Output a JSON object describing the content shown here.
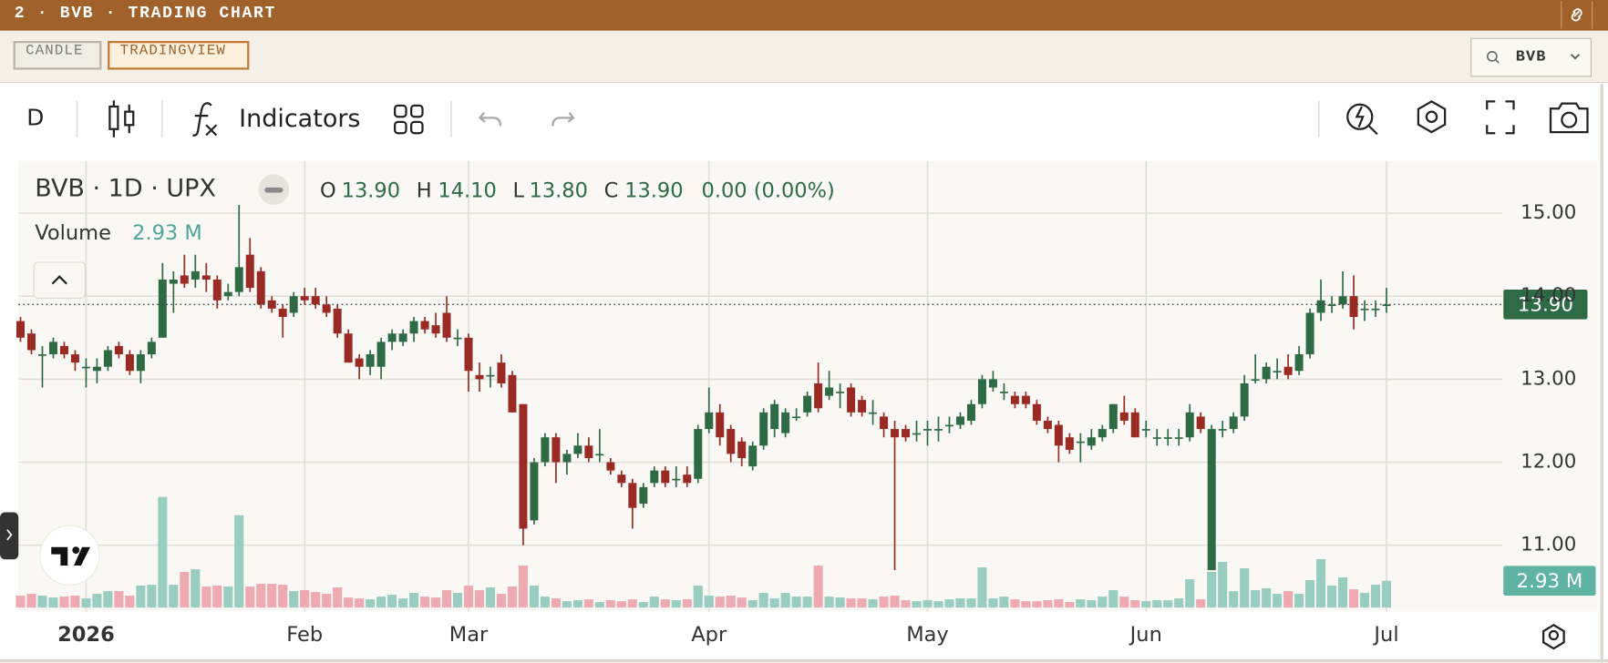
{
  "app": {
    "header": "2 · BVB · TRADING CHART",
    "tabs": [
      "CANDLE",
      "TRADINGVIEW"
    ],
    "search": "BVB",
    "toolbar": {
      "interval": "D",
      "indicators": "Indicators"
    }
  },
  "chart_data": {
    "type": "candlestick",
    "title": "BVB · 1D · UPX",
    "legend": {
      "open_key": "O",
      "open": "13.90",
      "high_key": "H",
      "high": "14.10",
      "low_key": "L",
      "low": "13.80",
      "close_key": "C",
      "close": "13.90",
      "change": "0.00 (0.00%)",
      "volume_key": "Volume"
    },
    "categories": [
      null,
      null,
      null,
      null,
      null,
      null,
      "2026",
      null,
      null,
      null,
      null,
      null,
      null,
      null,
      null,
      null,
      null,
      null,
      null,
      null,
      null,
      null,
      null,
      null,
      null,
      null,
      "Feb",
      null,
      null,
      null,
      null,
      null,
      null,
      null,
      null,
      null,
      null,
      null,
      null,
      null,
      null,
      "Mar",
      null,
      null,
      null,
      null,
      null,
      null,
      null,
      null,
      null,
      null,
      null,
      null,
      null,
      null,
      null,
      null,
      null,
      null,
      null,
      null,
      null,
      "Apr",
      null,
      null,
      null,
      null,
      null,
      null,
      null,
      null,
      null,
      null,
      null,
      null,
      null,
      null,
      null,
      null,
      null,
      null,
      null,
      "May",
      null,
      null,
      null,
      null,
      null,
      null,
      null,
      null,
      null,
      null,
      null,
      null,
      null,
      null,
      null,
      null,
      null,
      null,
      null,
      "Jun",
      null,
      null,
      null,
      null,
      null,
      null,
      null,
      null,
      null,
      null,
      null,
      null,
      null,
      null,
      null,
      null,
      null,
      null,
      null,
      null,
      null,
      "Jul"
    ],
    "open": [
      13.7,
      13.55,
      13.3,
      13.3,
      13.4,
      13.3,
      13.15,
      13.1,
      13.15,
      13.4,
      13.3,
      13.1,
      13.3,
      13.5,
      14.15,
      14.25,
      14.2,
      14.25,
      14.2,
      14.0,
      14.05,
      14.5,
      14.3,
      13.95,
      13.85,
      13.8,
      14.0,
      14.0,
      13.9,
      13.85,
      13.55,
      13.25,
      13.15,
      13.15,
      13.45,
      13.45,
      13.55,
      13.7,
      13.65,
      13.8,
      13.5,
      13.5,
      13.05,
      13.05,
      13.2,
      13.05,
      12.7,
      11.3,
      12.0,
      12.3,
      12.0,
      12.1,
      12.2,
      12.1,
      12.0,
      11.85,
      11.75,
      11.5,
      11.75,
      11.9,
      11.8,
      11.85,
      11.8,
      12.4,
      12.6,
      12.4,
      12.25,
      11.95,
      12.2,
      12.4,
      12.35,
      12.55,
      12.6,
      12.95,
      12.8,
      12.85,
      12.9,
      12.75,
      12.6,
      12.55,
      12.4,
      12.4,
      12.35,
      12.4,
      12.4,
      12.45,
      12.45,
      12.5,
      12.7,
      12.9,
      12.85,
      12.8,
      12.8,
      12.7,
      12.5,
      12.45,
      12.3,
      12.25,
      12.2,
      12.3,
      12.4,
      12.6,
      12.6,
      12.4,
      12.3,
      12.3,
      12.3,
      12.3,
      12.55,
      10.7,
      12.4,
      12.4,
      12.55,
      13.0,
      13.0,
      13.1,
      13.15,
      13.1,
      13.3,
      13.8,
      13.9,
      13.9,
      14.0,
      13.85,
      13.85,
      13.9
    ],
    "high": [
      13.75,
      13.6,
      13.4,
      13.5,
      13.45,
      13.35,
      13.25,
      13.25,
      13.4,
      13.45,
      13.35,
      13.35,
      13.5,
      14.4,
      14.3,
      14.5,
      14.5,
      14.4,
      14.25,
      14.15,
      15.1,
      14.7,
      14.35,
      14.0,
      13.9,
      14.05,
      14.1,
      14.1,
      14.0,
      13.9,
      13.6,
      13.3,
      13.35,
      13.5,
      13.6,
      13.6,
      13.75,
      13.75,
      13.8,
      14.0,
      13.6,
      13.55,
      13.2,
      13.15,
      13.3,
      13.1,
      12.7,
      12.05,
      12.35,
      12.35,
      12.15,
      12.35,
      12.3,
      12.4,
      12.05,
      11.9,
      11.8,
      11.75,
      11.95,
      11.95,
      11.95,
      11.95,
      12.45,
      12.9,
      12.7,
      12.45,
      12.3,
      12.25,
      12.65,
      12.75,
      12.65,
      12.65,
      12.85,
      13.2,
      13.1,
      12.95,
      12.95,
      12.8,
      12.75,
      12.6,
      12.5,
      12.45,
      12.5,
      12.5,
      12.55,
      12.55,
      12.6,
      12.75,
      13.05,
      13.1,
      12.95,
      12.85,
      12.85,
      12.75,
      12.55,
      12.5,
      12.35,
      12.35,
      12.4,
      12.45,
      12.7,
      12.8,
      12.65,
      12.5,
      12.4,
      12.4,
      12.4,
      12.7,
      12.6,
      12.45,
      12.5,
      12.6,
      13.05,
      13.3,
      13.2,
      13.25,
      13.3,
      13.4,
      13.85,
      14.2,
      14.0,
      14.3,
      14.25,
      13.95,
      13.95,
      14.1
    ],
    "low": [
      13.45,
      13.3,
      12.9,
      13.25,
      13.25,
      13.1,
      12.9,
      12.95,
      13.1,
      13.25,
      13.05,
      12.95,
      13.25,
      13.5,
      13.8,
      14.1,
      14.1,
      14.05,
      13.85,
      13.95,
      14.0,
      14.05,
      13.85,
      13.8,
      13.5,
      13.75,
      13.9,
      13.85,
      13.75,
      13.5,
      13.2,
      13.0,
      13.05,
      13.0,
      13.35,
      13.4,
      13.45,
      13.55,
      13.5,
      13.45,
      13.4,
      12.85,
      12.85,
      12.9,
      12.9,
      12.6,
      11.0,
      11.25,
      11.95,
      11.75,
      11.85,
      12.05,
      12.0,
      12.0,
      11.85,
      11.7,
      11.2,
      11.45,
      11.7,
      11.7,
      11.7,
      11.7,
      11.75,
      12.35,
      12.2,
      12.0,
      11.95,
      11.9,
      12.15,
      12.3,
      12.3,
      12.5,
      12.55,
      12.6,
      12.75,
      12.65,
      12.55,
      12.55,
      12.45,
      12.3,
      10.7,
      12.25,
      12.25,
      12.2,
      12.25,
      12.35,
      12.4,
      12.45,
      12.65,
      12.85,
      12.75,
      12.65,
      12.65,
      12.45,
      12.35,
      12.0,
      12.1,
      12.0,
      12.15,
      12.25,
      12.35,
      12.45,
      12.3,
      12.3,
      12.2,
      12.2,
      12.2,
      12.25,
      12.35,
      10.7,
      12.3,
      12.35,
      12.5,
      12.95,
      12.95,
      13.0,
      13.0,
      13.05,
      13.25,
      13.7,
      13.8,
      13.85,
      13.6,
      13.7,
      13.75,
      13.8
    ],
    "close": [
      13.5,
      13.35,
      13.3,
      13.45,
      13.3,
      13.2,
      13.15,
      13.15,
      13.35,
      13.3,
      13.1,
      13.3,
      13.45,
      14.2,
      14.2,
      14.15,
      14.3,
      14.2,
      13.95,
      14.05,
      14.35,
      14.1,
      13.9,
      13.85,
      13.75,
      14.0,
      13.95,
      13.9,
      13.8,
      13.55,
      13.2,
      13.15,
      13.3,
      13.45,
      13.55,
      13.55,
      13.7,
      13.6,
      13.55,
      13.5,
      13.5,
      13.1,
      13.0,
      13.05,
      12.95,
      12.6,
      11.2,
      12.0,
      12.3,
      12.0,
      12.1,
      12.2,
      12.05,
      12.1,
      11.9,
      11.75,
      11.45,
      11.7,
      11.9,
      11.75,
      11.8,
      11.75,
      12.4,
      12.6,
      12.3,
      12.1,
      12.05,
      12.2,
      12.6,
      12.7,
      12.6,
      12.55,
      12.8,
      12.65,
      12.9,
      12.85,
      12.6,
      12.6,
      12.6,
      12.4,
      12.3,
      12.3,
      12.35,
      12.4,
      12.4,
      12.45,
      12.55,
      12.7,
      13.0,
      13.0,
      12.85,
      12.7,
      12.7,
      12.5,
      12.4,
      12.2,
      12.15,
      12.25,
      12.3,
      12.4,
      12.7,
      12.5,
      12.3,
      12.4,
      12.3,
      12.3,
      12.3,
      12.6,
      12.4,
      12.4,
      12.4,
      12.55,
      12.95,
      13.0,
      13.15,
      13.1,
      13.05,
      13.3,
      13.8,
      13.95,
      13.9,
      14.0,
      13.75,
      13.85,
      13.85,
      13.9
    ],
    "volume": [
      1.3,
      1.5,
      1.3,
      1.1,
      1.2,
      1.3,
      1.0,
      1.5,
      1.8,
      1.8,
      1.3,
      2.4,
      2.5,
      12.1,
      2.5,
      3.9,
      4.2,
      2.3,
      2.4,
      2.3,
      10.1,
      2.3,
      2.6,
      2.6,
      2.5,
      1.8,
      1.9,
      1.7,
      1.5,
      2.2,
      1.1,
      1.0,
      0.9,
      1.2,
      1.4,
      1.0,
      1.6,
      1.2,
      1.1,
      1.9,
      1.6,
      2.4,
      1.9,
      2.2,
      1.5,
      2.3,
      4.6,
      2.4,
      1.2,
      1.0,
      0.7,
      0.8,
      0.9,
      0.6,
      0.8,
      0.7,
      0.9,
      0.6,
      1.2,
      0.9,
      0.8,
      0.9,
      2.4,
      1.3,
      1.2,
      1.3,
      1.1,
      0.8,
      1.6,
      1.0,
      1.6,
      1.2,
      1.2,
      4.6,
      1.2,
      1.1,
      1.0,
      1.0,
      0.9,
      1.2,
      1.3,
      0.8,
      0.7,
      0.8,
      0.7,
      0.9,
      1.0,
      1.0,
      4.4,
      1.0,
      1.2,
      0.9,
      0.7,
      0.7,
      0.8,
      0.9,
      0.6,
      0.9,
      0.8,
      1.2,
      1.9,
      1.2,
      0.8,
      0.7,
      0.8,
      0.8,
      1.0,
      3.1,
      0.9,
      3.9,
      5.0,
      1.8,
      4.3,
      1.9,
      2.1,
      1.5,
      1.8,
      1.5,
      3.0,
      5.3,
      2.4,
      3.3,
      2.0,
      1.6,
      2.5,
      2.93
    ],
    "ylim": [
      10.2,
      15.63
    ],
    "yticks": [
      {
        "value": 11,
        "label": "11.00"
      },
      {
        "value": 12,
        "label": "12.00"
      },
      {
        "value": 13,
        "label": "13.00"
      },
      {
        "value": 14,
        "label": "14.00"
      },
      {
        "value": 15,
        "label": "15.00"
      }
    ],
    "volume_ylim": [
      0,
      13
    ],
    "last_price": {
      "value": 13.9,
      "label": "13.90"
    },
    "last_volume": {
      "value": 2.93,
      "label": "2.93 M"
    },
    "grid": true,
    "up_color": "#2e6b45",
    "down_color": "#9a2a24",
    "volume_up_color": "#98cdbf",
    "volume_down_color": "#eeaab0",
    "last_price_color": "#2e6b45",
    "last_volume_color": "#5fb3a3"
  }
}
